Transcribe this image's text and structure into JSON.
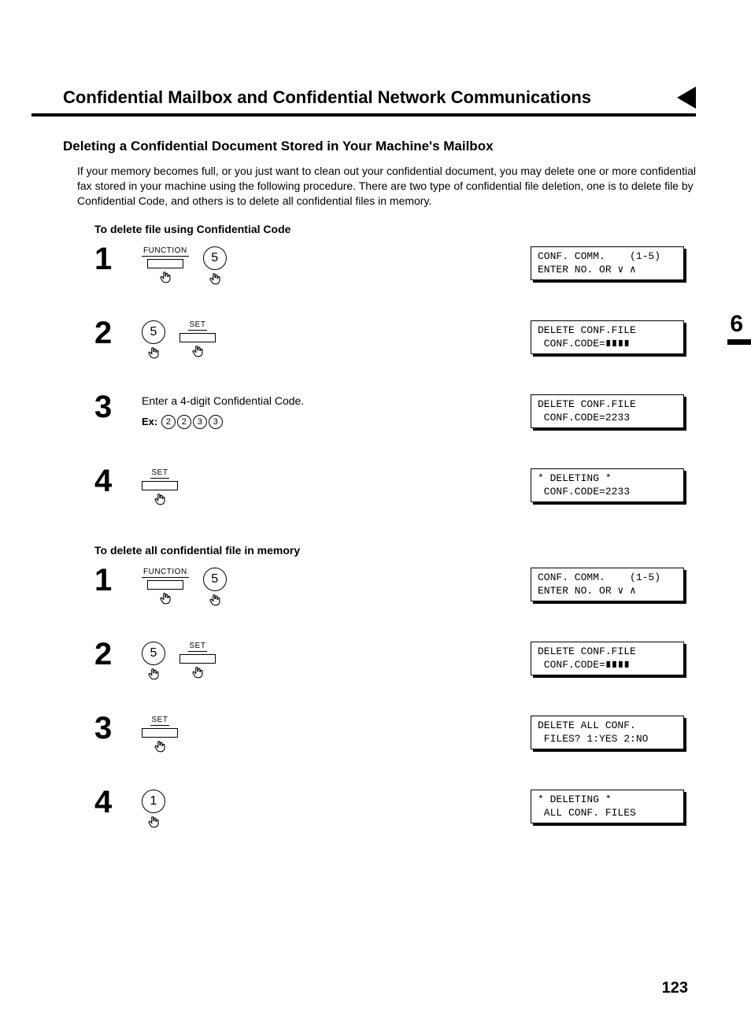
{
  "header": {
    "title": "Confidential Mailbox and Confidential Network Communications"
  },
  "tab": {
    "chapter": "6"
  },
  "section": {
    "heading": "Deleting a Confidential Document Stored in Your Machine's Mailbox",
    "intro": "If your memory becomes full, or you just want to clean out your confidential document, you may delete one or more confidential fax stored in your machine using the following procedure.\nThere are two type of confidential file deletion, one is to delete file by Confidential Code, and others is to delete all confidential files in memory."
  },
  "proc_a": {
    "heading": "To delete file using Confidential Code",
    "steps": [
      {
        "num": "1",
        "keys": [
          {
            "type": "labeled-rect",
            "label": "FUNCTION"
          },
          {
            "type": "circle",
            "label": "5"
          }
        ],
        "lcd": "CONF. COMM.    (1-5)\nENTER NO. OR ∨ ∧"
      },
      {
        "num": "2",
        "keys": [
          {
            "type": "circle",
            "label": "5"
          },
          {
            "type": "labeled-rect",
            "label": "SET"
          }
        ],
        "lcd": "DELETE CONF.FILE\n CONF.CODE=∎∎∎∎"
      },
      {
        "num": "3",
        "instr": "Enter a 4-digit Confidential Code.",
        "ex_label": "Ex:",
        "ex_digits": [
          "2",
          "2",
          "3",
          "3"
        ],
        "lcd": "DELETE CONF.FILE\n CONF.CODE=2233"
      },
      {
        "num": "4",
        "keys": [
          {
            "type": "labeled-rect",
            "label": "SET"
          }
        ],
        "lcd": "* DELETING *\n CONF.CODE=2233"
      }
    ]
  },
  "proc_b": {
    "heading": "To delete all confidential file in memory",
    "steps": [
      {
        "num": "1",
        "keys": [
          {
            "type": "labeled-rect",
            "label": "FUNCTION"
          },
          {
            "type": "circle",
            "label": "5"
          }
        ],
        "lcd": "CONF. COMM.    (1-5)\nENTER NO. OR ∨ ∧"
      },
      {
        "num": "2",
        "keys": [
          {
            "type": "circle",
            "label": "5"
          },
          {
            "type": "labeled-rect",
            "label": "SET"
          }
        ],
        "lcd": "DELETE CONF.FILE\n CONF.CODE=∎∎∎∎"
      },
      {
        "num": "3",
        "keys": [
          {
            "type": "labeled-rect",
            "label": "SET"
          }
        ],
        "lcd": "DELETE ALL CONF.\n FILES? 1:YES 2:NO"
      },
      {
        "num": "4",
        "keys": [
          {
            "type": "circle",
            "label": "1"
          }
        ],
        "lcd": "* DELETING *\n ALL CONF. FILES"
      }
    ]
  },
  "page_number": "123",
  "glyphs": {
    "hand": "☝",
    "block": "∎"
  }
}
